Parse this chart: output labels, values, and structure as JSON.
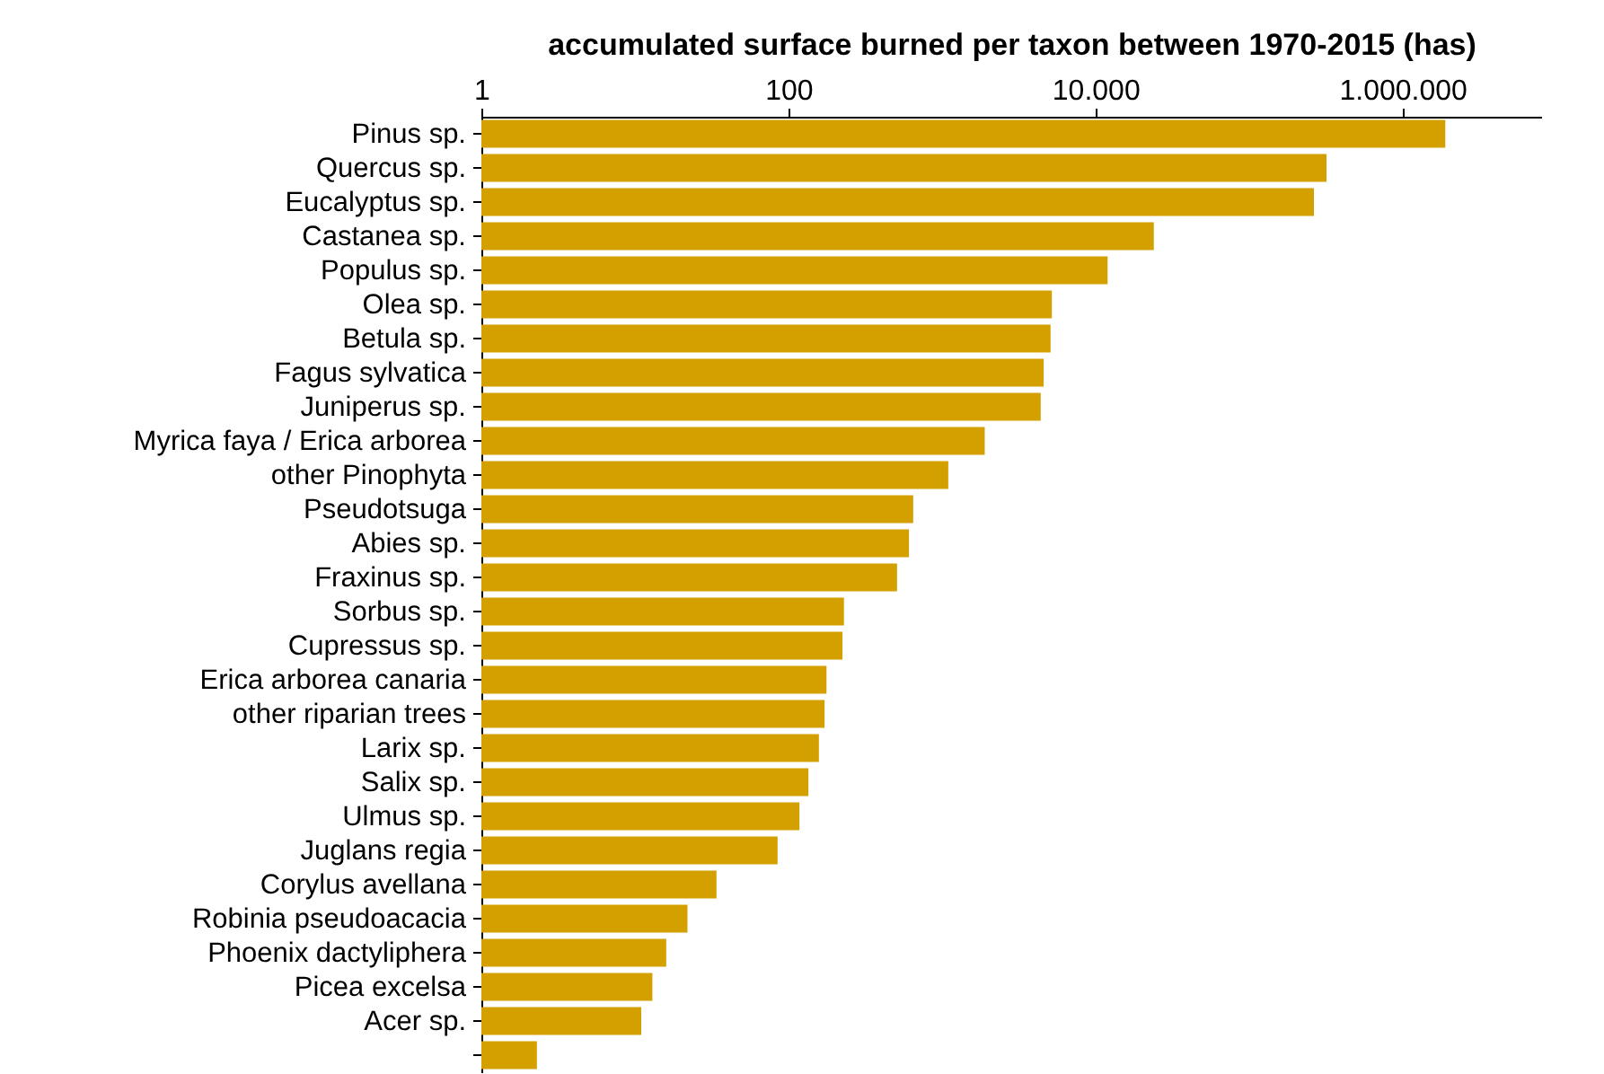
{
  "chart_data": {
    "type": "bar",
    "orientation": "horizontal",
    "xlabel": "accumulated surface burned per taxon between 1970-2015 (has)",
    "categories": [
      "Pinus sp.",
      "Quercus sp.",
      "Eucalyptus sp.",
      "Castanea sp.",
      "Populus sp.",
      "Olea sp.",
      "Betula sp.",
      "Fagus sylvatica",
      "Juniperus sp.",
      "Myrica faya / Erica arborea",
      "other Pinophyta",
      "Pseudotsuga",
      "Abies sp.",
      "Fraxinus sp.",
      "Sorbus sp.",
      "Cupressus sp.",
      "Erica arborea canaria",
      "other riparian trees",
      "Larix sp.",
      "Salix sp.",
      "Ulmus sp.",
      "Juglans regia",
      "Corylus avellana",
      "Robinia pseudoacacia",
      "Phoenix dactyliphera",
      "Picea excelsa",
      "Acer sp.",
      null
    ],
    "values": [
      1900000,
      320000,
      265000,
      24000,
      12000,
      5200,
      5100,
      4600,
      4400,
      1900,
      1100,
      650,
      610,
      510,
      230,
      225,
      177,
      172,
      158,
      135,
      118,
      85,
      34,
      22,
      16,
      13,
      11,
      2.3
    ],
    "color": "#d4a000",
    "log": "x",
    "xlim": [
      1,
      8000000
    ],
    "xticks": [
      1,
      100,
      {
        "value": 10000,
        "label": "10.000"
      },
      {
        "value": 1000000,
        "label": "1.000.000"
      }
    ],
    "grid": false
  }
}
